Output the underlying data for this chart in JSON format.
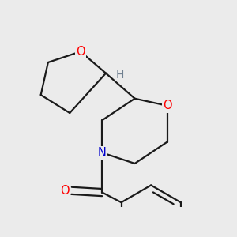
{
  "bg_color": "#ebebeb",
  "bond_color": "#1a1a1a",
  "atom_colors": {
    "O": "#ff0000",
    "N": "#0000cc",
    "Cl": "#00aa00",
    "C": "#1a1a1a",
    "H": "#708090"
  },
  "bond_width": 1.6,
  "font_size": 10.5
}
